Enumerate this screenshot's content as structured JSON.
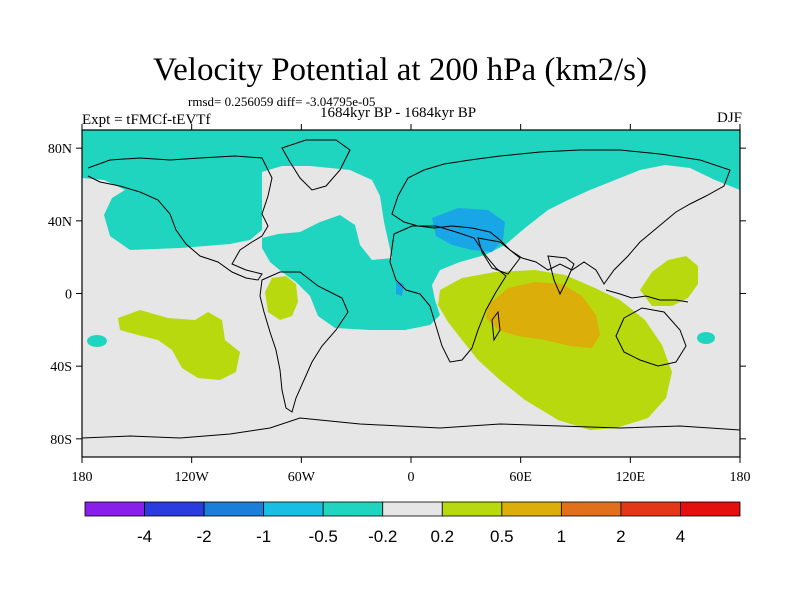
{
  "chart_data": {
    "type": "heatmap",
    "title": "Velocity Potential at 200 hPa (km2/s)",
    "stats_text": "rmsd= 0.256059 diff= -3.04795e-05",
    "left_label": "Expt = tFMCf-tEVTf",
    "center_label": "1684kyr BP - 1684kyr BP",
    "right_label": "DJF",
    "x_ticks": [
      {
        "value": -180,
        "label": "180"
      },
      {
        "value": -120,
        "label": "120W"
      },
      {
        "value": -60,
        "label": "60W"
      },
      {
        "value": 0,
        "label": "0"
      },
      {
        "value": 60,
        "label": "60E"
      },
      {
        "value": 120,
        "label": "120E"
      },
      {
        "value": 180,
        "label": "180"
      }
    ],
    "y_ticks": [
      {
        "value": 80,
        "label": "80N"
      },
      {
        "value": 40,
        "label": "40N"
      },
      {
        "value": 0,
        "label": "0"
      },
      {
        "value": -40,
        "label": "40S"
      },
      {
        "value": -80,
        "label": "80S"
      }
    ],
    "xlim": [
      -180,
      180
    ],
    "ylim": [
      -90,
      90
    ],
    "colorbar": {
      "levels": [
        "-4",
        "-2",
        "-1",
        "-0.5",
        "-0.2",
        "0.2",
        "0.5",
        "1",
        "2",
        "4"
      ],
      "colors": [
        "#8a1eeb",
        "#2a3be0",
        "#1a7fdb",
        "#19bfe3",
        "#20d5c0",
        "#e6e6e6",
        "#b8d90e",
        "#dcae0a",
        "#e2701a",
        "#e23818",
        "#e40f0f"
      ]
    },
    "regions": [
      {
        "name": "northern-hemisphere-negative",
        "level": -0.5,
        "note": "-0.5 to -0.2 over Arctic, North Atlantic, Eurasia"
      },
      {
        "name": "mediterranean-minimum",
        "level": -1,
        "note": "-1 to -0.5 over Mediterranean / Middle East"
      },
      {
        "name": "south-atlantic-negative",
        "level": -0.5,
        "note": "-0.5 to -0.2 tropical/south Atlantic"
      },
      {
        "name": "indian-ocean-positive",
        "level": 0.5,
        "note": "0.2 to 0.5 Indian Ocean basin"
      },
      {
        "name": "indian-ocean-maximum",
        "level": 1,
        "note": "0.5 to 1 central Indian Ocean"
      },
      {
        "name": "south-pacific-positive",
        "level": 0.2,
        "note": "0.2 to 0.5 South Pacific"
      },
      {
        "name": "maritime-continent-positive",
        "level": 0.2,
        "note": "0.2 to 0.5 western Pacific"
      },
      {
        "name": "andes-positive",
        "level": 0.2,
        "note": "0.2 to 0.5 South America"
      }
    ]
  }
}
